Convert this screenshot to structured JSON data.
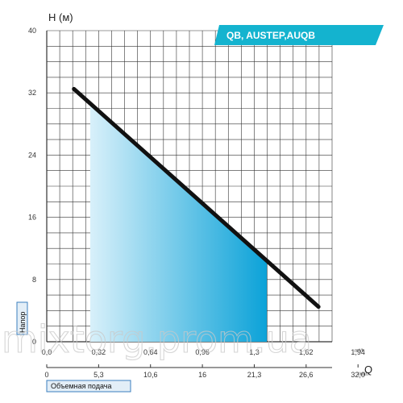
{
  "chart_data": {
    "type": "line",
    "title": "QB, AUSTEP,AUQB",
    "ylabel": "H (м)",
    "xlabel": "Q",
    "ylim": [
      0,
      40
    ],
    "y_ticks": [
      "0",
      "8",
      "16",
      "24",
      "32",
      "40"
    ],
    "x_ticks_flow_m3h": [
      "0,0",
      "0,32",
      "0,64",
      "0,96",
      "1,3",
      "1,62",
      "1,94"
    ],
    "x_unit_m3h": "m³/h",
    "x_ticks_flow_lmin": [
      "0",
      "5,3",
      "10,6",
      "16",
      "21,3",
      "26,6",
      "32,0"
    ],
    "x_unit_lmin": "l/min",
    "left_side_label": "Напор",
    "bottom_box_label": "Объемная подача",
    "grid": true,
    "series": [
      {
        "x": [
          0.2,
          2.0
        ],
        "y": [
          32.5,
          4.5
        ]
      }
    ],
    "working_range": {
      "x": [
        0.32,
        1.62
      ]
    }
  },
  "watermark": "mixtorg.prom.ua",
  "colors": {
    "curve": "#111111",
    "fill_start": "#d8f0fa",
    "fill_end": "#0ba2d8",
    "badge_bg": "#14b3cf",
    "grid": "#333333",
    "label_box_bg": "#e3eef7",
    "label_box_border": "#3b7fbf"
  }
}
